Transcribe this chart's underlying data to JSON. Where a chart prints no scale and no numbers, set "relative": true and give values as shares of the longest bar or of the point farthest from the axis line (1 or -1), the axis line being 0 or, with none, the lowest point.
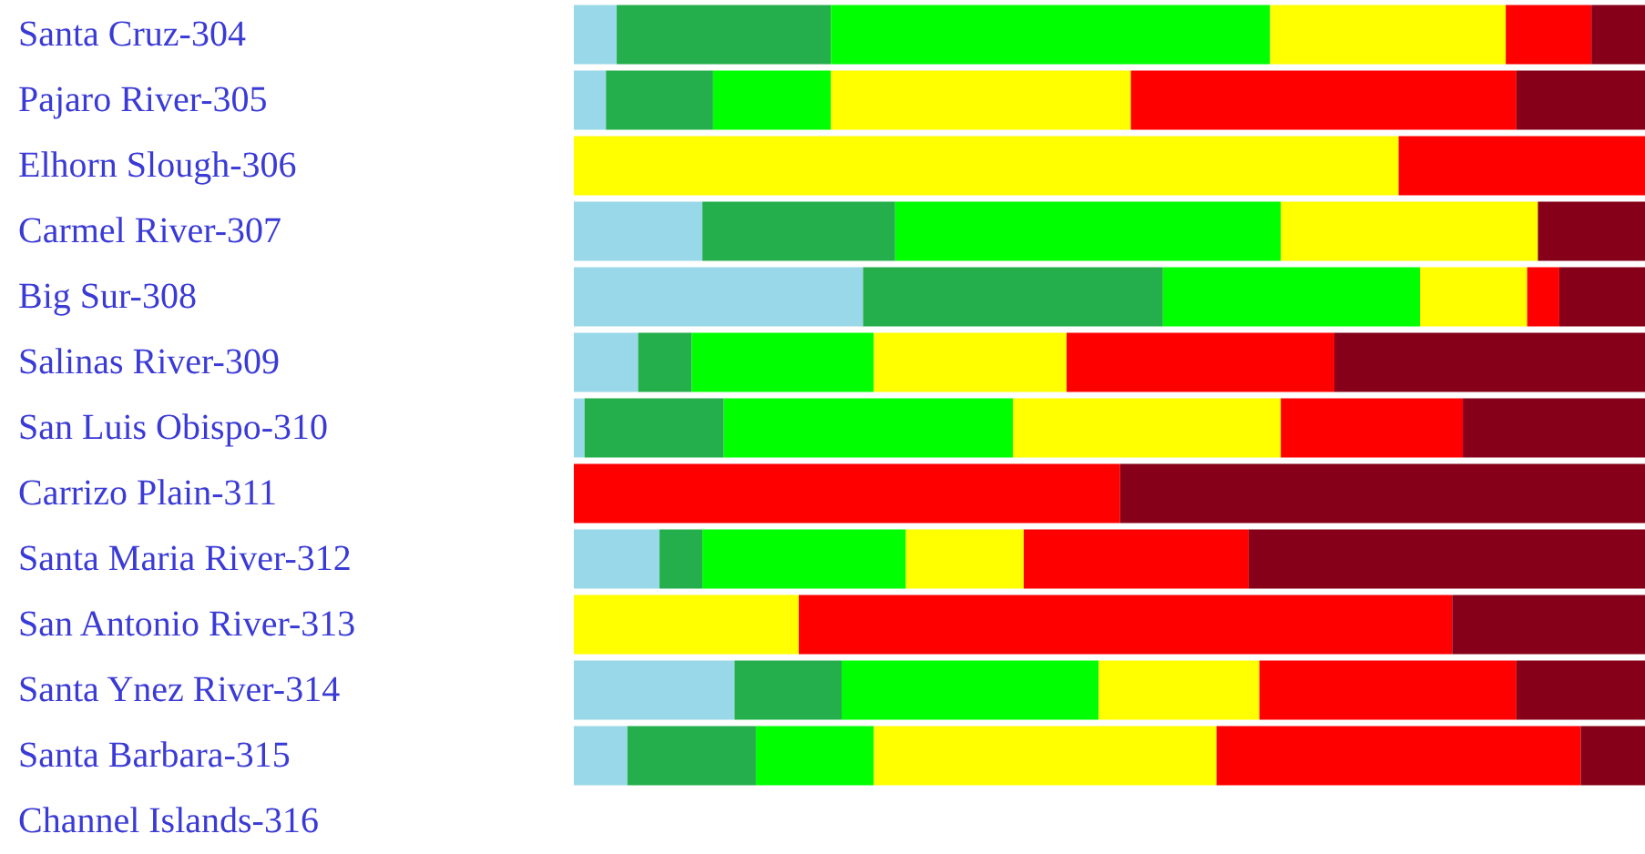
{
  "chart_data": {
    "type": "bar",
    "orientation": "horizontal",
    "stacked": true,
    "relative": true,
    "categories": [
      "Santa Cruz-304",
      "Pajaro River-305",
      "Elhorn Slough-306",
      "Carmel River-307",
      "Big Sur-308",
      "Salinas River-309",
      "San Luis Obispo-310",
      "Carrizo Plain-311",
      "Santa Maria River-312",
      "San Antonio River-313",
      "Santa Ynez River-314",
      "Santa Barbara-315",
      "Channel Islands-316"
    ],
    "series": [
      {
        "color": "#99d8e8",
        "values": [
          0.04,
          0.03,
          0,
          0.12,
          0.27,
          0.06,
          0.01,
          0,
          0.08,
          0,
          0.15,
          0.05,
          null
        ]
      },
      {
        "color": "#25ae4c",
        "values": [
          0.2,
          0.1,
          0,
          0.18,
          0.28,
          0.05,
          0.13,
          0,
          0.04,
          0,
          0.1,
          0.12,
          null
        ]
      },
      {
        "color": "#00ff00",
        "values": [
          0.41,
          0.11,
          0,
          0.36,
          0.24,
          0.17,
          0.27,
          0,
          0.19,
          0,
          0.24,
          0.11,
          null
        ]
      },
      {
        "color": "#ffff00",
        "values": [
          0.22,
          0.28,
          0.77,
          0.24,
          0.1,
          0.18,
          0.25,
          0,
          0.11,
          0.21,
          0.15,
          0.32,
          null
        ]
      },
      {
        "color": "#ff0000",
        "values": [
          0.08,
          0.36,
          0.23,
          0,
          0.03,
          0.25,
          0.17,
          0.51,
          0.21,
          0.61,
          0.24,
          0.34,
          null
        ]
      },
      {
        "color": "#850018",
        "values": [
          0.05,
          0.12,
          0,
          0.1,
          0.08,
          0.29,
          0.17,
          0.49,
          0.37,
          0.18,
          0.12,
          0.06,
          null
        ]
      }
    ]
  }
}
